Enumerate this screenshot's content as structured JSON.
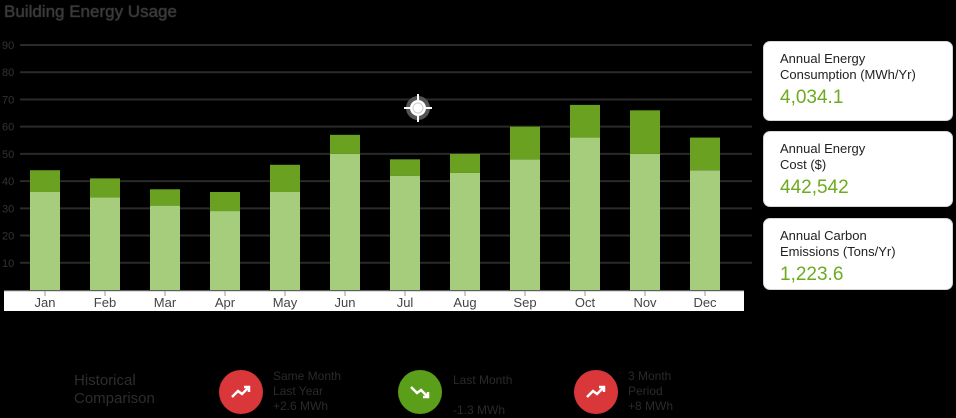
{
  "page": {
    "title": "Building Energy Usage"
  },
  "chart_data": {
    "type": "bar",
    "stacked": true,
    "categories": [
      "Jan",
      "Feb",
      "Mar",
      "Apr",
      "May",
      "Jun",
      "Jul",
      "Aug",
      "Sep",
      "Oct",
      "Nov",
      "Dec"
    ],
    "series": [
      {
        "values": [
          36,
          34,
          31,
          29,
          36,
          50,
          42,
          43,
          48,
          56,
          50,
          44
        ],
        "color": "#a5cd7b"
      },
      {
        "values": [
          8,
          7,
          6,
          7,
          10,
          7,
          6,
          7,
          12,
          12,
          16,
          12
        ],
        "color": "#6aa121"
      }
    ],
    "yticks": [
      10,
      20,
      30,
      40,
      50,
      60,
      70,
      80,
      90
    ],
    "ylim": [
      0,
      90
    ],
    "grid": true,
    "grid_color": "#222222"
  },
  "kpis": [
    {
      "label_line1": "Annual Energy",
      "label_line2": "Consumption (MWh/Yr)",
      "value": "4,034.1"
    },
    {
      "label_line1": "Annual Energy",
      "label_line2": "Cost ($)",
      "value": "442,542"
    },
    {
      "label_line1": "Annual Carbon",
      "label_line2": "Emissions (Tons/Yr)",
      "value": "1,223.6"
    }
  ],
  "historical": {
    "label_line1": "Historical",
    "label_line2": "Comparison",
    "items": [
      {
        "line1": "Same Month",
        "line2": "Last Year",
        "line3": "+2.6 MWh",
        "trend": "up",
        "color": "#d9373a",
        "icon": "trend-up-icon"
      },
      {
        "line1": "Last Month",
        "line2": "",
        "line3": "-1.3 MWh",
        "trend": "down",
        "color": "#5a9e1a",
        "icon": "trend-down-icon"
      },
      {
        "line1": "3 Month",
        "line2": "Period",
        "line3": "+8 MWh",
        "trend": "up",
        "color": "#d9373a",
        "icon": "trend-up-icon"
      }
    ]
  },
  "accent_color": "#6cab1f"
}
